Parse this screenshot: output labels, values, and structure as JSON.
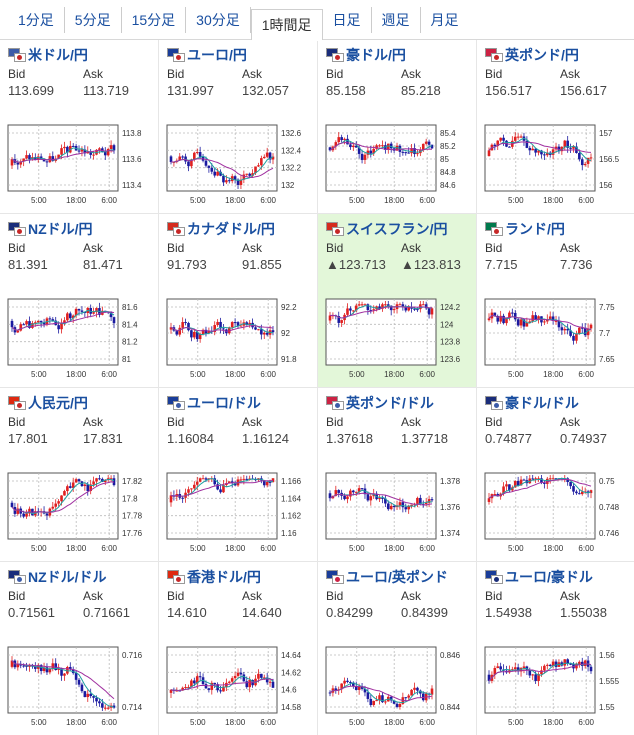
{
  "tabs": [
    "1分足",
    "5分足",
    "15分足",
    "30分足",
    "1時間足",
    "日足",
    "週足",
    "月足"
  ],
  "active_tab": 4,
  "quote_labels": {
    "bid": "Bid",
    "ask": "Ask"
  },
  "x_ticks": [
    "5:00",
    "18:00",
    "6:00"
  ],
  "colors": {
    "up": "#e02020",
    "down": "#1a1aa0",
    "ma1": "#20a0a0",
    "ma2": "#a030a0",
    "link": "#1a4fa0",
    "highlight": "#e3f7d9"
  },
  "pairs": [
    {
      "name": "米ドル/円",
      "flags": [
        "#3c5ca8",
        "#c62828"
      ],
      "bid": "113.699",
      "ask": "113.719",
      "y_ticks": [
        "113.8",
        "113.6",
        "113.4"
      ],
      "seed": 3
    },
    {
      "name": "ユーロ/円",
      "flags": [
        "#1a3d99",
        "#c62828"
      ],
      "bid": "131.997",
      "ask": "132.057",
      "y_ticks": [
        "132.6",
        "132.4",
        "132.2",
        "132"
      ],
      "seed": 7
    },
    {
      "name": "豪ドル/円",
      "flags": [
        "#1a2d7a",
        "#c62828"
      ],
      "bid": "85.158",
      "ask": "85.218",
      "y_ticks": [
        "85.4",
        "85.2",
        "85",
        "84.8",
        "84.6"
      ],
      "seed": 11
    },
    {
      "name": "英ポンド/円",
      "flags": [
        "#cc2244",
        "#c62828"
      ],
      "bid": "156.517",
      "ask": "156.617",
      "y_ticks": [
        "157",
        "156.5",
        "156"
      ],
      "seed": 13
    },
    {
      "name": "NZドル/円",
      "flags": [
        "#1a2d7a",
        "#c62828"
      ],
      "bid": "81.391",
      "ask": "81.471",
      "y_ticks": [
        "81.6",
        "81.4",
        "81.2",
        "81"
      ],
      "seed": 17
    },
    {
      "name": "カナダドル/円",
      "flags": [
        "#d52b1e",
        "#c62828"
      ],
      "bid": "91.793",
      "ask": "91.855",
      "y_ticks": [
        "92.2",
        "92",
        "91.8"
      ],
      "seed": 19
    },
    {
      "name": "スイスフラン/円",
      "flags": [
        "#d52b1e",
        "#c62828"
      ],
      "bid": "▲123.713",
      "ask": "▲123.813",
      "y_ticks": [
        "124.2",
        "124",
        "123.8",
        "123.6"
      ],
      "seed": 23,
      "highlight": true
    },
    {
      "name": "ランド/円",
      "flags": [
        "#007a4d",
        "#c62828"
      ],
      "bid": "7.715",
      "ask": "7.736",
      "y_ticks": [
        "7.75",
        "7.7",
        "7.65"
      ],
      "seed": 29
    },
    {
      "name": "人民元/円",
      "flags": [
        "#de2910",
        "#c62828"
      ],
      "bid": "17.801",
      "ask": "17.831",
      "y_ticks": [
        "17.82",
        "17.8",
        "17.78",
        "17.76"
      ],
      "seed": 31
    },
    {
      "name": "ユーロ/ドル",
      "flags": [
        "#1a3d99",
        "#3c5ca8"
      ],
      "bid": "1.16084",
      "ask": "1.16124",
      "y_ticks": [
        "1.166",
        "1.164",
        "1.162",
        "1.16"
      ],
      "seed": 37
    },
    {
      "name": "英ポンド/ドル",
      "flags": [
        "#cc2244",
        "#3c5ca8"
      ],
      "bid": "1.37618",
      "ask": "1.37718",
      "y_ticks": [
        "1.378",
        "1.376",
        "1.374"
      ],
      "seed": 41
    },
    {
      "name": "豪ドル/ドル",
      "flags": [
        "#1a2d7a",
        "#3c5ca8"
      ],
      "bid": "0.74877",
      "ask": "0.74937",
      "y_ticks": [
        "0.75",
        "0.748",
        "0.746"
      ],
      "seed": 43
    },
    {
      "name": "NZドル/ドル",
      "flags": [
        "#1a2d7a",
        "#3c5ca8"
      ],
      "bid": "0.71561",
      "ask": "0.71661",
      "y_ticks": [
        "0.716",
        "0.714"
      ],
      "seed": 47
    },
    {
      "name": "香港ドル/円",
      "flags": [
        "#de2910",
        "#c62828"
      ],
      "bid": "14.610",
      "ask": "14.640",
      "y_ticks": [
        "14.64",
        "14.62",
        "14.6",
        "14.58"
      ],
      "seed": 53
    },
    {
      "name": "ユーロ/英ポンド",
      "flags": [
        "#1a3d99",
        "#cc2244"
      ],
      "bid": "0.84299",
      "ask": "0.84399",
      "y_ticks": [
        "0.846",
        "0.844"
      ],
      "seed": 59
    },
    {
      "name": "ユーロ/豪ドル",
      "flags": [
        "#1a3d99",
        "#1a2d7a"
      ],
      "bid": "1.54938",
      "ask": "1.55038",
      "y_ticks": [
        "1.56",
        "1.555",
        "1.55"
      ],
      "seed": 61
    }
  ]
}
